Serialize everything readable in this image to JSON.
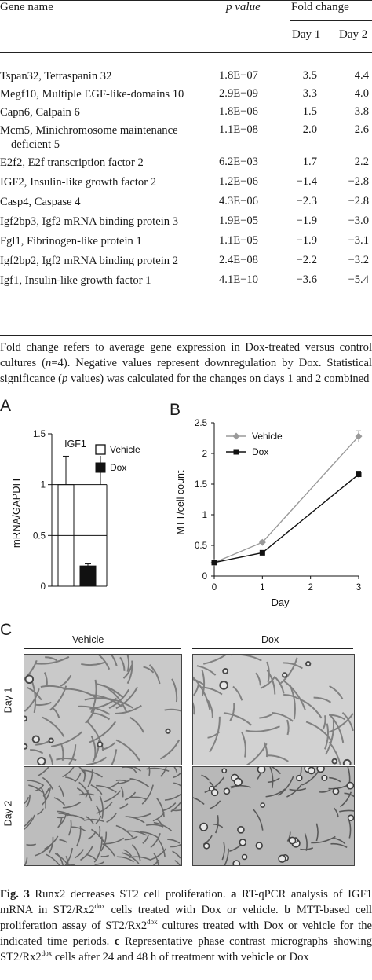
{
  "table": {
    "headers": {
      "gene": "Gene name",
      "pvalue": "p value",
      "fold": "Fold change",
      "day1": "Day 1",
      "day2": "Day 2"
    },
    "rows": [
      {
        "gene": "Tspan32, Tetraspanin 32",
        "p": "1.8E−07",
        "d1": "3.5",
        "d2": "4.4"
      },
      {
        "gene": "Megf10, Multiple EGF-like-domains 10",
        "p": "2.9E−09",
        "d1": "3.3",
        "d2": "4.0"
      },
      {
        "gene": "Capn6, Calpain 6",
        "p": "1.8E−06",
        "d1": "1.5",
        "d2": "3.8"
      },
      {
        "gene": "Mcm5, Minichromosome maintenance",
        "gene2": "deficient 5",
        "p": "1.1E−08",
        "d1": "2.0",
        "d2": "2.6"
      },
      {
        "gene": "E2f2, E2f transcription factor 2",
        "p": "6.2E−03",
        "d1": "1.7",
        "d2": "2.2"
      },
      {
        "gene": "IGF2, Insulin-like growth factor 2",
        "p": "1.2E−06",
        "d1": "−1.4",
        "d2": "−2.8"
      },
      {
        "gene": "Casp4, Caspase 4",
        "p": "4.3E−06",
        "d1": "−2.3",
        "d2": "−2.8"
      },
      {
        "gene": "Igf2bp3, Igf2 mRNA binding protein 3",
        "p": "1.9E−05",
        "d1": "−1.9",
        "d2": "−3.0"
      },
      {
        "gene": "Fgl1, Fibrinogen-like protein 1",
        "p": "1.1E−05",
        "d1": "−1.9",
        "d2": "−3.1"
      },
      {
        "gene": "Igf2bp2, Igf2 mRNA binding protein 2",
        "p": "2.4E−08",
        "d1": "−2.2",
        "d2": "−3.2"
      },
      {
        "gene": "Igf1, Insulin-like growth factor 1",
        "p": "4.1E−10",
        "d1": "−3.6",
        "d2": "−5.4"
      }
    ],
    "footnote": {
      "part1": "Fold change refers to average gene expression in Dox-treated versus control cultures (",
      "n": "n",
      "part2": "=4). Negative values represent downregulation by Dox. Statistical significance (",
      "p": "p",
      "part3": " values) was calculated for the changes on days 1 and 2 combined"
    }
  },
  "panels": {
    "a": "A",
    "b": "B",
    "c": "C"
  },
  "chart_data": [
    {
      "type": "bar",
      "title": "IGF1",
      "ylabel": "mRNA/GAPDH",
      "ylim": [
        0,
        1.5
      ],
      "yticks": [
        "0",
        "0.5",
        "1",
        "1.5"
      ],
      "categories": [
        "Vehicle",
        "Dox"
      ],
      "values": [
        1.0,
        0.2
      ],
      "error": [
        0.28,
        0.02
      ],
      "legend": [
        "Vehicle",
        "Dox"
      ],
      "legend_placement": "top-right"
    },
    {
      "type": "line",
      "xlabel": "Day",
      "ylabel": "MTT/cell count",
      "xlim": [
        0,
        3
      ],
      "ylim": [
        0,
        2.5
      ],
      "xticks": [
        "0",
        "1",
        "2",
        "3"
      ],
      "yticks": [
        "0",
        "0.5",
        "1",
        "1.5",
        "2",
        "2.5"
      ],
      "series": [
        {
          "name": "Vehicle",
          "x": [
            0,
            1,
            3
          ],
          "y": [
            0.22,
            0.55,
            2.28
          ],
          "err": [
            0.03,
            0.03,
            0.09
          ],
          "color": "#9a9a9a",
          "marker": "diamond"
        },
        {
          "name": "Dox",
          "x": [
            0,
            1,
            3
          ],
          "y": [
            0.22,
            0.38,
            1.66
          ],
          "err": [
            0.02,
            0.02,
            0.05
          ],
          "color": "#111111",
          "marker": "square"
        }
      ],
      "legend_placement": "top-left"
    }
  ],
  "micrographs": {
    "col_vehicle": "Vehicle",
    "col_dox": "Dox",
    "row_day1": "Day 1",
    "row_day2": "Day 2"
  },
  "caption": {
    "label": "Fig. 3",
    "t1": " Runx2 decreases ST2 cell proliferation. ",
    "a": "a",
    "t2": " RT-qPCR analysis of IGF1 mRNA in ST2/Rx2",
    "sup1": "dox",
    "t3": " cells treated with Dox or vehicle. ",
    "b": "b",
    "t4": " MTT-based cell proliferation assay of ST2/Rx2",
    "sup2": "dox",
    "t5": " cultures treated with Dox or vehicle for the indicated time periods. ",
    "c": "c",
    "t6": " Representative phase contrast micrographs showing ST2/Rx2",
    "sup3": "dox",
    "t7": " cells after 24 and 48 h of treatment with vehicle or Dox"
  }
}
